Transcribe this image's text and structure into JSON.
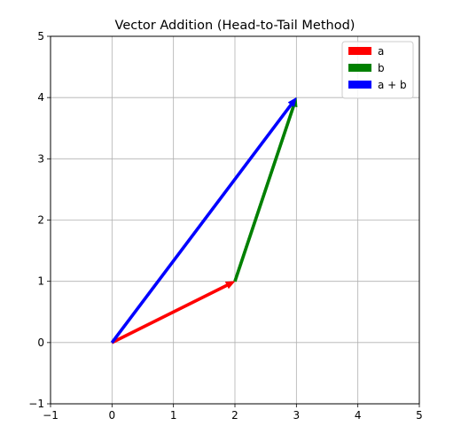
{
  "chart_data": {
    "type": "vector",
    "title": "Vector Addition (Head-to-Tail Method)",
    "xlabel": "",
    "ylabel": "",
    "xlim": [
      -1,
      5
    ],
    "ylim": [
      -1,
      5
    ],
    "xticks": [
      -1,
      0,
      1,
      2,
      3,
      4,
      5
    ],
    "yticks": [
      -1,
      0,
      1,
      2,
      3,
      4,
      5
    ],
    "grid": true,
    "legend_position": "upper-right",
    "vectors": [
      {
        "name": "a",
        "color": "#ff0000",
        "from": [
          0,
          0
        ],
        "to": [
          2,
          1
        ]
      },
      {
        "name": "b",
        "color": "#008000",
        "from": [
          2,
          1
        ],
        "to": [
          3,
          4
        ]
      },
      {
        "name": "a + b",
        "color": "#0000ff",
        "from": [
          0,
          0
        ],
        "to": [
          3,
          4
        ]
      }
    ]
  }
}
